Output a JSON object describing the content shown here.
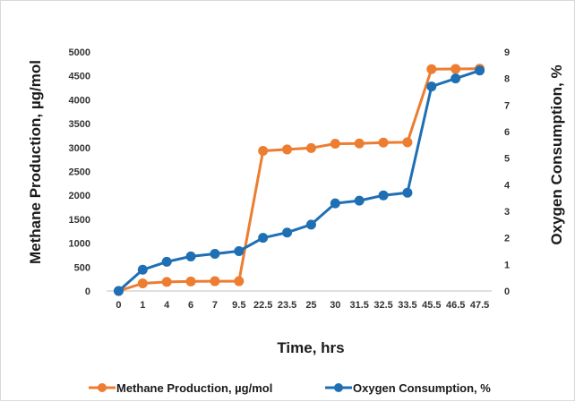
{
  "chart_data": {
    "type": "line",
    "categories": [
      "0",
      "1",
      "4",
      "6",
      "7",
      "9.5",
      "22.5",
      "23.5",
      "25",
      "30",
      "31.5",
      "32.5",
      "33.5",
      "45.5",
      "46.5",
      "47.5"
    ],
    "series": [
      {
        "name": "Methane Production, µg/mol",
        "axis": "left",
        "color": "#ED7D31",
        "values": [
          0,
          160,
          190,
          200,
          205,
          205,
          2930,
          2960,
          2990,
          3080,
          3085,
          3105,
          3110,
          4640,
          4645,
          4650
        ]
      },
      {
        "name": "Oxygen Consumption, %",
        "axis": "right",
        "color": "#1F6FB5",
        "values": [
          0,
          0.8,
          1.1,
          1.3,
          1.4,
          1.5,
          2.0,
          2.2,
          2.5,
          3.3,
          3.4,
          3.6,
          3.7,
          7.7,
          8.0,
          8.3
        ]
      }
    ],
    "xlabel": "Time, hrs",
    "ylabel": "Methane Production, µg/mol",
    "y2label": "Oxygen Consumption, %",
    "ylim": [
      0,
      5000
    ],
    "yticks": [
      0,
      500,
      1000,
      1500,
      2000,
      2500,
      3000,
      3500,
      4000,
      4500,
      5000
    ],
    "y2lim": [
      0,
      9
    ],
    "y2ticks": [
      0,
      1,
      2,
      3,
      4,
      5,
      6,
      7,
      8,
      9
    ],
    "grid": false,
    "legend": "bottom"
  }
}
